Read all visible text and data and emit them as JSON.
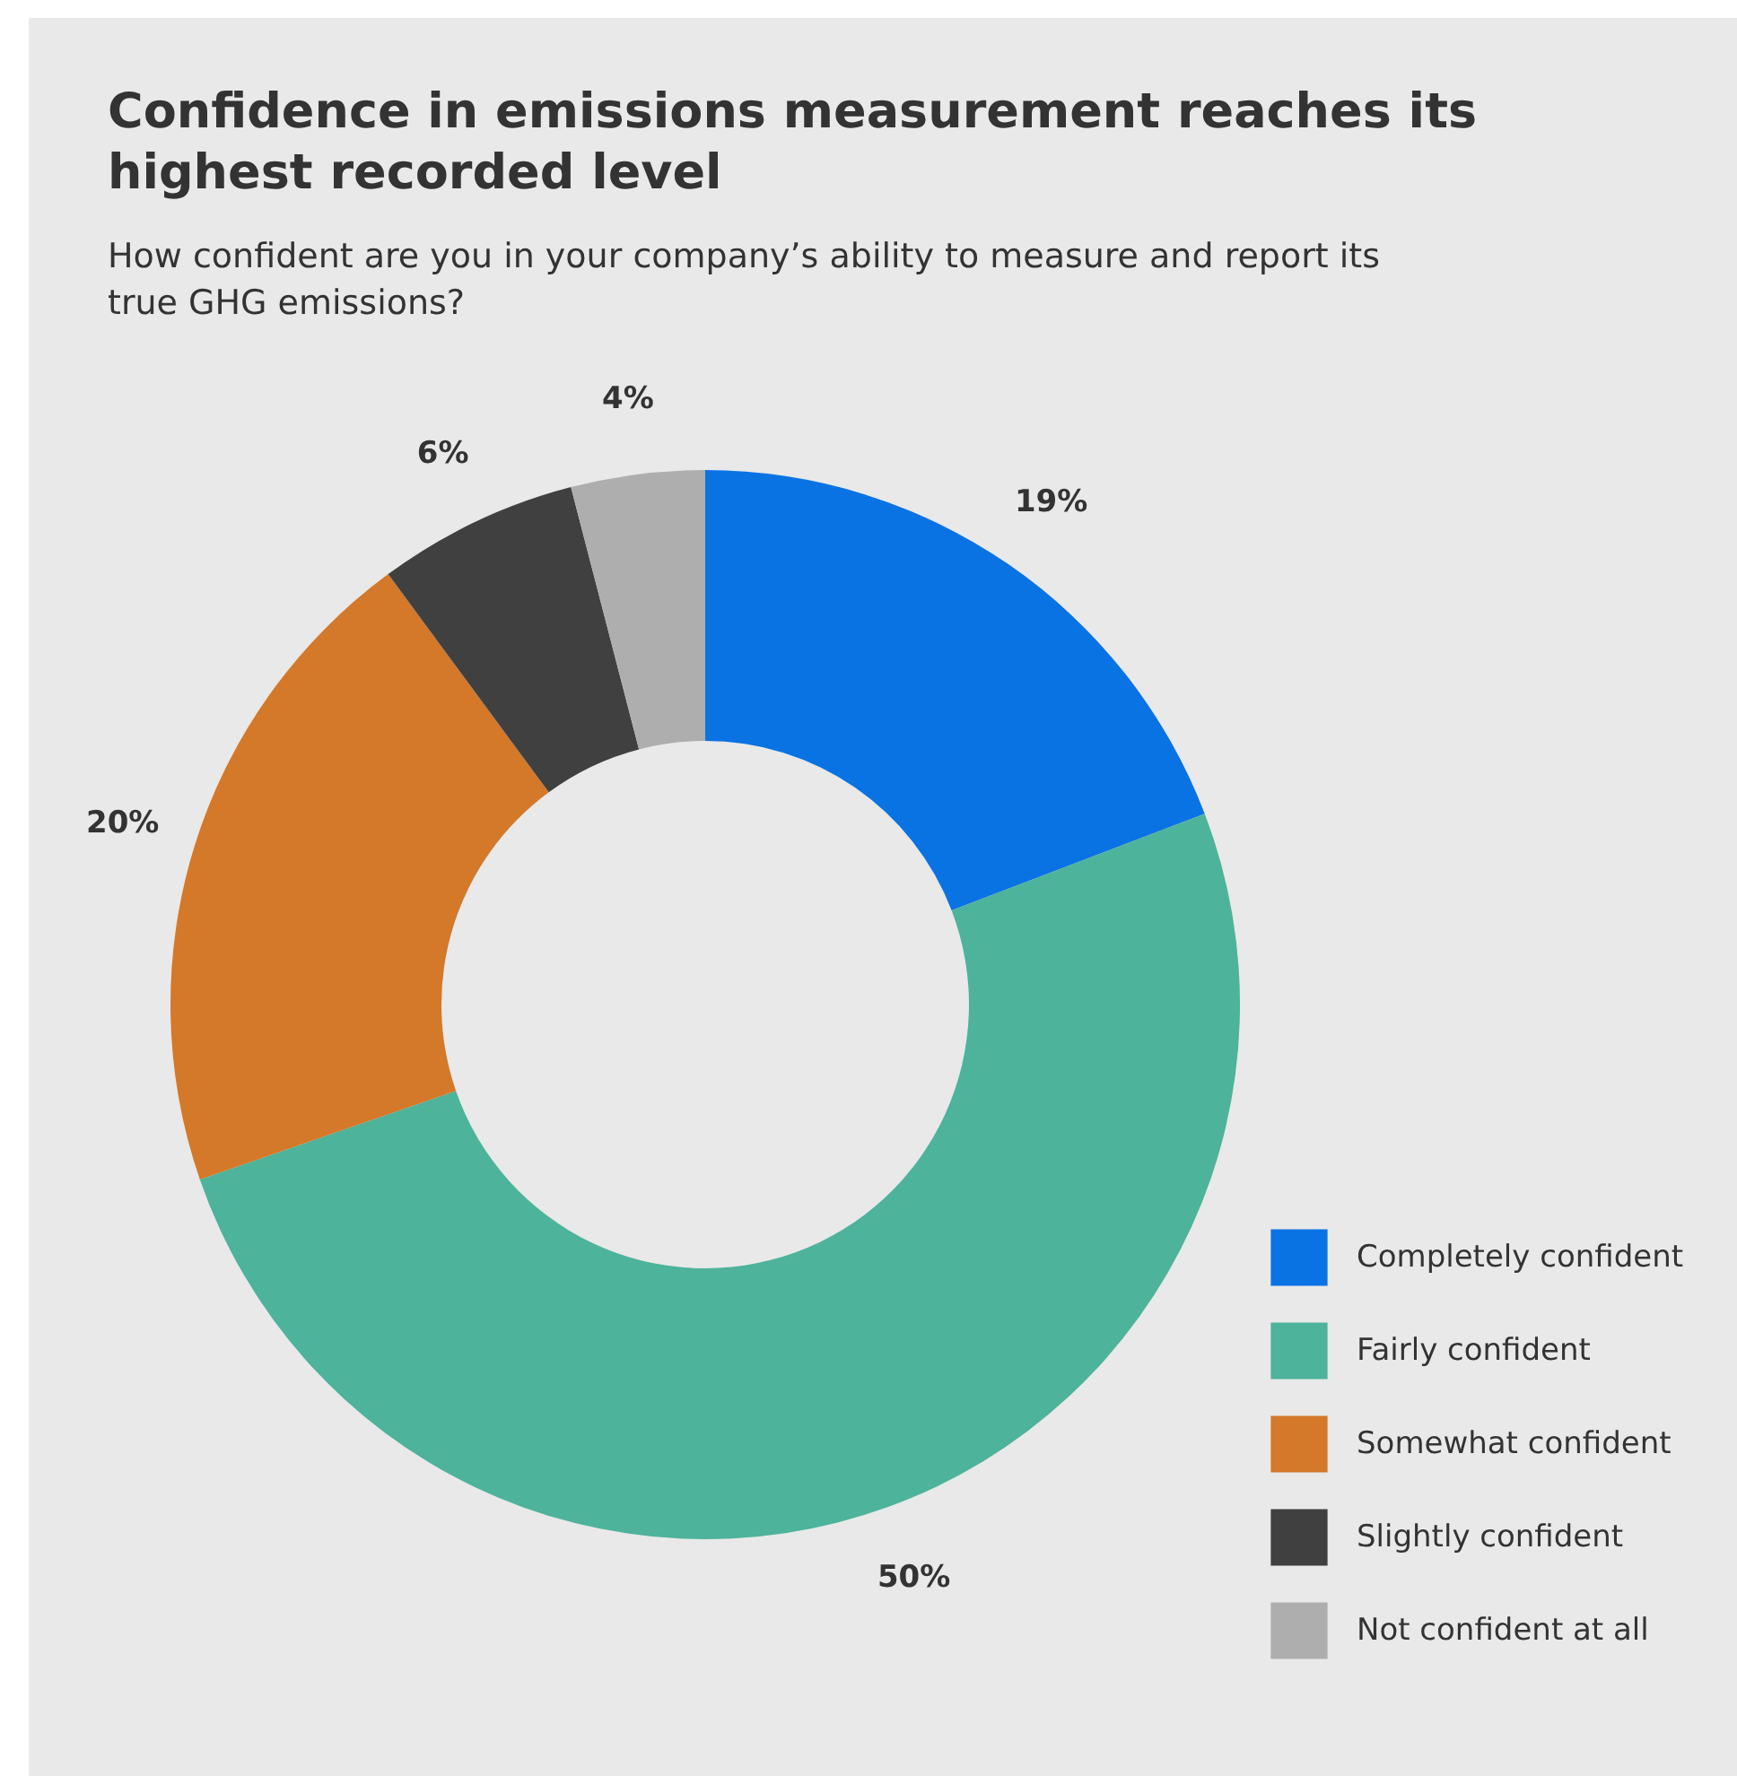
{
  "chart_data": {
    "type": "donut",
    "title": "Confidence in emissions measurement reaches its highest recorded level",
    "subtitle": "How confident are you in your company’s ability to measure and report its true GHG emissions?",
    "categories": [
      "Completely confident",
      "Fairly confident",
      "Somewhat confident",
      "Slightly confident",
      "Not confident at all"
    ],
    "values": [
      19,
      50,
      20,
      6,
      4
    ],
    "colors": [
      "#0a73e3",
      "#4db39b",
      "#d4782a",
      "#404040",
      "#aeaeae"
    ],
    "value_labels": [
      "19%",
      "50%",
      "20%",
      "6%",
      "4%"
    ],
    "legend": "bottom right"
  }
}
